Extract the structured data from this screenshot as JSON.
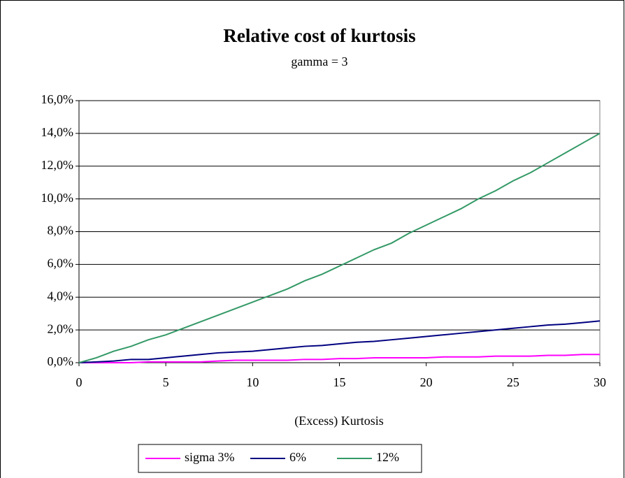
{
  "chart_data": {
    "type": "line",
    "title": "Relative cost of kurtosis",
    "subtitle": "gamma = 3",
    "x_label": "(Excess) Kurtosis",
    "x": [
      0,
      1,
      2,
      3,
      4,
      5,
      6,
      7,
      8,
      9,
      10,
      11,
      12,
      13,
      14,
      15,
      16,
      17,
      18,
      19,
      20,
      21,
      22,
      23,
      24,
      25,
      26,
      27,
      28,
      29,
      30
    ],
    "series": [
      {
        "name": "sigma 3%",
        "color": "#ff00ff",
        "values": [
          0,
          0,
          0,
          0,
          0.05,
          0.05,
          0.05,
          0.05,
          0.1,
          0.15,
          0.15,
          0.15,
          0.15,
          0.2,
          0.2,
          0.25,
          0.25,
          0.3,
          0.3,
          0.3,
          0.3,
          0.35,
          0.35,
          0.35,
          0.4,
          0.4,
          0.4,
          0.45,
          0.45,
          0.5,
          0.5
        ]
      },
      {
        "name": "6%",
        "color": "#000080",
        "values": [
          0,
          0.05,
          0.1,
          0.2,
          0.2,
          0.3,
          0.4,
          0.5,
          0.6,
          0.65,
          0.7,
          0.8,
          0.9,
          1.0,
          1.05,
          1.15,
          1.25,
          1.3,
          1.4,
          1.5,
          1.6,
          1.7,
          1.8,
          1.9,
          2.0,
          2.1,
          2.2,
          2.3,
          2.35,
          2.45,
          2.55
        ]
      },
      {
        "name": "12%",
        "color": "#339966",
        "values": [
          0,
          0.3,
          0.7,
          1.0,
          1.4,
          1.7,
          2.1,
          2.5,
          2.9,
          3.3,
          3.7,
          4.1,
          4.5,
          5.0,
          5.4,
          5.9,
          6.4,
          6.9,
          7.3,
          7.9,
          8.4,
          8.9,
          9.4,
          10.0,
          10.5,
          11.1,
          11.6,
          12.2,
          12.8,
          13.4,
          14.0
        ]
      }
    ],
    "xlim": [
      0,
      30
    ],
    "xticks": [
      0,
      5,
      10,
      15,
      20,
      25,
      30
    ],
    "ylim": [
      0,
      16
    ],
    "yticks": [
      {
        "value": 0,
        "label": "0,0%"
      },
      {
        "value": 2,
        "label": "2,0%"
      },
      {
        "value": 4,
        "label": "4,0%"
      },
      {
        "value": 6,
        "label": "6,0%"
      },
      {
        "value": 8,
        "label": "8,0%"
      },
      {
        "value": 10,
        "label": "10,0%"
      },
      {
        "value": 12,
        "label": "12,0%"
      },
      {
        "value": 14,
        "label": "14,0%"
      },
      {
        "value": 16,
        "label": "16,0%"
      }
    ],
    "grid": true,
    "legend": "bottom"
  }
}
